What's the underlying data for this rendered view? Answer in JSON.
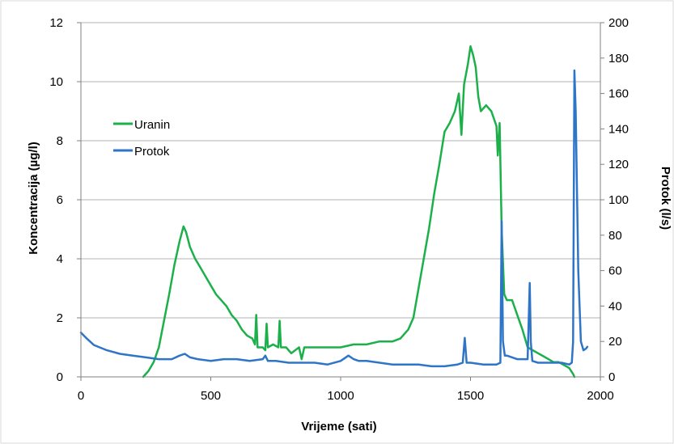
{
  "chart_data": {
    "type": "line",
    "x_axis": {
      "label": "Vrijeme (sati)",
      "range": [
        0,
        2000
      ],
      "ticks": [
        0,
        500,
        1000,
        1500,
        2000
      ]
    },
    "y_axis_left": {
      "label": "Koncentracija (µg/l)",
      "range": [
        0,
        12
      ],
      "ticks": [
        0,
        2,
        4,
        6,
        8,
        10,
        12
      ]
    },
    "y_axis_right": {
      "label": "Protok (l/s)",
      "range": [
        0,
        200
      ],
      "ticks": [
        0,
        20,
        40,
        60,
        80,
        100,
        120,
        140,
        160,
        180,
        200
      ]
    },
    "grid": "horizontal",
    "legend_position": "upper-left",
    "series": [
      {
        "name": "Uranin",
        "axis": "left",
        "color": "#1bb04a",
        "x": [
          240,
          260,
          280,
          300,
          320,
          340,
          360,
          380,
          395,
          405,
          420,
          440,
          460,
          480,
          500,
          520,
          540,
          560,
          580,
          600,
          620,
          640,
          660,
          670,
          675,
          680,
          700,
          710,
          715,
          720,
          740,
          760,
          765,
          770,
          790,
          810,
          840,
          850,
          860,
          900,
          950,
          1000,
          1050,
          1100,
          1150,
          1200,
          1230,
          1260,
          1280,
          1300,
          1320,
          1340,
          1360,
          1380,
          1400,
          1420,
          1440,
          1455,
          1465,
          1475,
          1490,
          1500,
          1510,
          1520,
          1530,
          1540,
          1560,
          1580,
          1600,
          1605,
          1612,
          1620,
          1630,
          1640,
          1660,
          1680,
          1700,
          1720,
          1740,
          1760,
          1780,
          1800,
          1820,
          1840,
          1860,
          1880,
          1895,
          1900
        ],
        "values": [
          0.0,
          0.2,
          0.5,
          1.0,
          1.9,
          2.8,
          3.8,
          4.6,
          5.1,
          4.9,
          4.4,
          4.0,
          3.7,
          3.4,
          3.1,
          2.8,
          2.6,
          2.4,
          2.1,
          1.9,
          1.6,
          1.4,
          1.3,
          1.1,
          2.1,
          1.0,
          1.0,
          0.9,
          1.8,
          1.0,
          1.1,
          1.0,
          1.9,
          1.0,
          1.0,
          0.8,
          1.0,
          0.6,
          1.0,
          1.0,
          1.0,
          1.0,
          1.1,
          1.1,
          1.2,
          1.2,
          1.3,
          1.6,
          2.0,
          3.0,
          4.0,
          5.0,
          6.2,
          7.2,
          8.3,
          8.6,
          9.0,
          9.6,
          8.2,
          9.9,
          10.6,
          11.2,
          10.9,
          10.5,
          9.5,
          9.0,
          9.2,
          9.0,
          8.5,
          7.5,
          8.6,
          5.0,
          2.8,
          2.6,
          2.6,
          2.1,
          1.6,
          1.0,
          0.9,
          0.8,
          0.7,
          0.6,
          0.5,
          0.5,
          0.4,
          0.3,
          0.1,
          0.0
        ]
      },
      {
        "name": "Protok",
        "axis": "right",
        "color": "#2e75c8",
        "x": [
          0,
          20,
          50,
          100,
          150,
          200,
          250,
          300,
          350,
          380,
          400,
          420,
          450,
          500,
          550,
          600,
          650,
          700,
          710,
          720,
          750,
          800,
          850,
          900,
          950,
          1000,
          1030,
          1050,
          1070,
          1100,
          1150,
          1200,
          1250,
          1300,
          1350,
          1400,
          1450,
          1470,
          1478,
          1485,
          1500,
          1550,
          1600,
          1615,
          1620,
          1625,
          1632,
          1640,
          1680,
          1720,
          1728,
          1732,
          1738,
          1760,
          1800,
          1850,
          1880,
          1890,
          1895,
          1900,
          1905,
          1915,
          1925,
          1935,
          1945,
          1950
        ],
        "values": [
          25,
          22,
          18,
          15,
          13,
          12,
          11,
          10,
          10,
          12,
          13,
          11,
          10,
          9,
          10,
          10,
          9,
          10,
          12,
          9,
          9,
          8,
          8,
          8,
          7,
          9,
          12,
          10,
          9,
          9,
          8,
          7,
          7,
          7,
          6,
          6,
          7,
          8,
          22,
          8,
          8,
          7,
          7,
          8,
          88,
          20,
          12,
          12,
          10,
          10,
          53,
          20,
          9,
          8,
          8,
          8,
          7,
          8,
          20,
          173,
          150,
          60,
          20,
          15,
          16,
          17
        ]
      }
    ]
  }
}
